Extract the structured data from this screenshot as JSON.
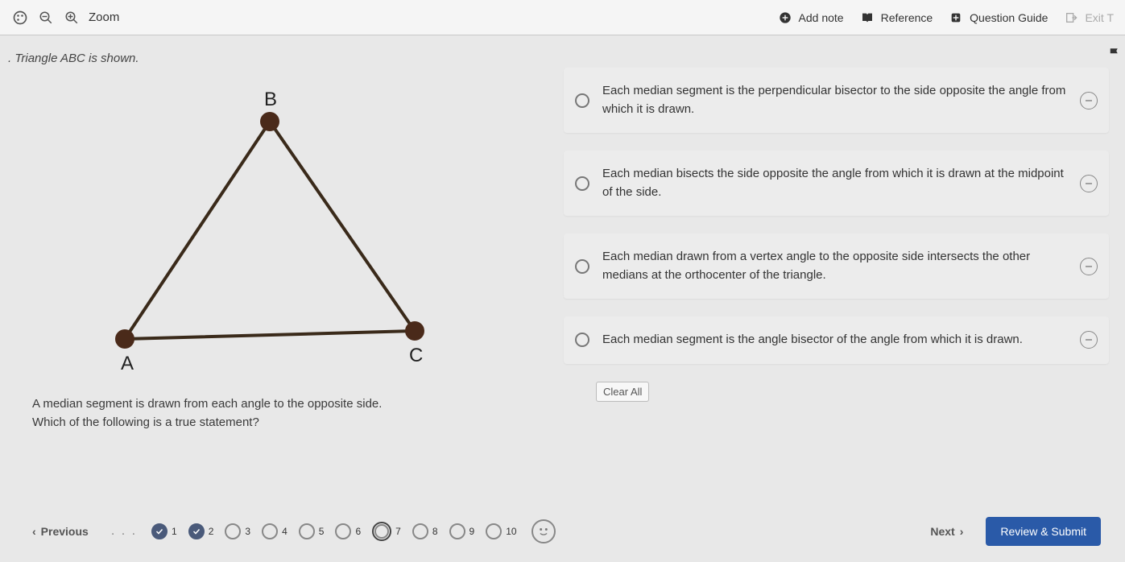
{
  "toolbar": {
    "zoom_label": "Zoom",
    "add_note": "Add note",
    "reference": "Reference",
    "question_guide": "Question Guide",
    "exit": "Exit T"
  },
  "question": {
    "intro": ". Triangle ABC is shown.",
    "line1": "A median segment is drawn from each angle to the opposite side.",
    "line2": "Which of the following is a true statement?"
  },
  "triangle": {
    "labels": {
      "A": "A",
      "B": "B",
      "C": "C"
    },
    "vertex_A": [
      70,
      330
    ],
    "vertex_B": [
      250,
      60
    ],
    "vertex_C": [
      430,
      320
    ],
    "stroke_color": "#3a2a1a",
    "point_color": "#4a2a1a",
    "stroke_width": 4,
    "point_radius": 12,
    "label_fontsize": 24
  },
  "options": {
    "a": "Each median segment is the perpendicular bisector to the side opposite the angle from which it is drawn.",
    "b": "Each median bisects the side opposite the angle from which it is drawn at the midpoint of the side.",
    "c": "Each median drawn from a vertex angle to the opposite side intersects the other medians at the orthocenter of the triangle.",
    "d": "Each median segment is the angle bisector of the angle from which it is drawn."
  },
  "clear_all": "Clear All",
  "footer": {
    "previous": "Previous",
    "next": "Next",
    "review": "Review & Submit",
    "questions": [
      {
        "n": "1",
        "state": "done"
      },
      {
        "n": "2",
        "state": "done"
      },
      {
        "n": "3",
        "state": "open"
      },
      {
        "n": "4",
        "state": "open"
      },
      {
        "n": "5",
        "state": "open"
      },
      {
        "n": "6",
        "state": "open"
      },
      {
        "n": "7",
        "state": "current"
      },
      {
        "n": "8",
        "state": "open"
      },
      {
        "n": "9",
        "state": "open"
      },
      {
        "n": "10",
        "state": "open"
      }
    ]
  },
  "colors": {
    "background": "#e8e8e8",
    "option_bg": "#ececec",
    "review_btn": "#2a5aa8"
  }
}
